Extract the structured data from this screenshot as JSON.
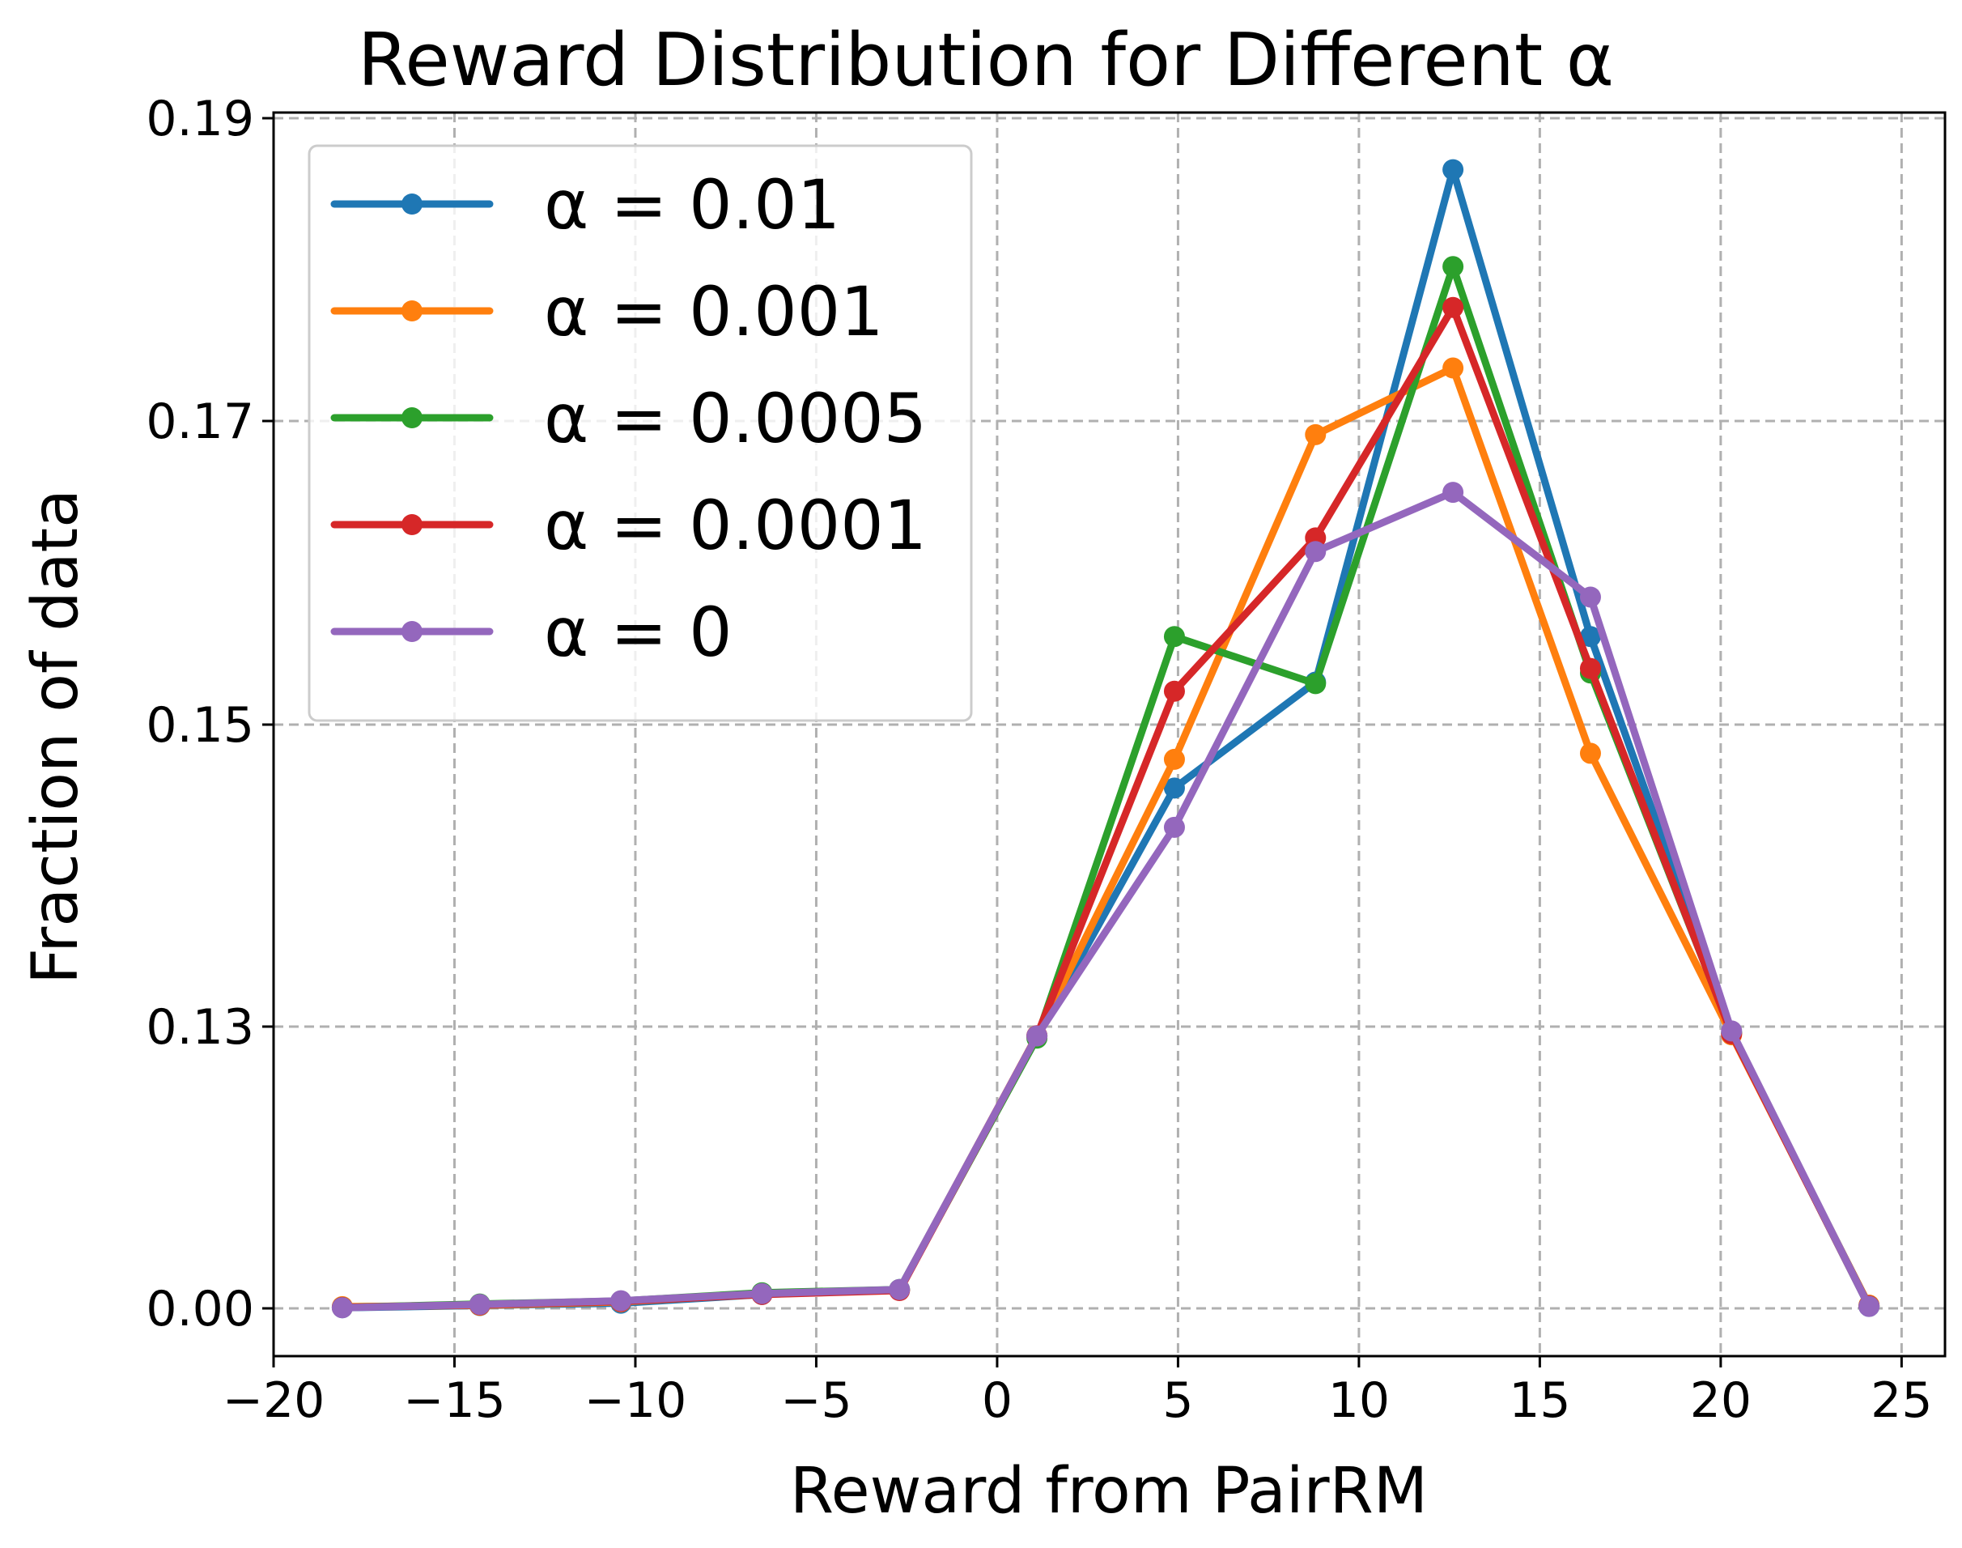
{
  "chart_data": {
    "type": "line",
    "title": "Reward Distribution for Different α",
    "xlabel": "Reward from PairRM",
    "ylabel": "Fraction of data",
    "xlim": [
      -20,
      26.2
    ],
    "ylim": [
      -0.0035,
      0.19
    ],
    "x_ticks": [
      -20,
      -15,
      -10,
      -5,
      0,
      5,
      10,
      15,
      20,
      25
    ],
    "x_tick_labels": [
      "−20",
      "−15",
      "−10",
      "−5",
      "0",
      "5",
      "10",
      "15",
      "20",
      "25"
    ],
    "y_ticks": [
      0.0,
      0.13,
      0.15,
      0.17,
      0.19
    ],
    "y_tick_labels": [
      "0.00",
      "0.13",
      "0.15",
      "0.17",
      "0.19"
    ],
    "y_scale_note": "broken axis: 0.00 then 0.13–0.19",
    "grid": true,
    "legend_position": "upper-left",
    "x": [
      -18.1,
      -14.3,
      -10.4,
      -6.5,
      -2.7,
      1.1,
      4.9,
      8.8,
      12.6,
      16.4,
      20.3,
      24.1
    ],
    "series": [
      {
        "name": "α = 0.01",
        "color": "#1f77b4",
        "values": [
          0.0003,
          0.0013,
          0.0024,
          0.0064,
          0.0087,
          0.1255,
          0.1458,
          0.1528,
          0.1866,
          0.1558,
          0.127,
          0.0009
        ]
      },
      {
        "name": "α = 0.001",
        "color": "#ff7f0e",
        "values": [
          0.0008,
          0.0014,
          0.003,
          0.0066,
          0.0086,
          0.1258,
          0.1477,
          0.1691,
          0.1735,
          0.1481,
          0.1262,
          0.0015
        ]
      },
      {
        "name": "α = 0.0005",
        "color": "#2ca02c",
        "values": [
          0.0004,
          0.002,
          0.0034,
          0.0072,
          0.0087,
          0.1247,
          0.1558,
          0.1527,
          0.1802,
          0.1534,
          0.1272,
          0.0011
        ]
      },
      {
        "name": "α = 0.0001",
        "color": "#d62728",
        "values": [
          0.0004,
          0.0016,
          0.0032,
          0.0064,
          0.0082,
          0.1258,
          0.1522,
          0.1623,
          0.1775,
          0.1537,
          0.1267,
          0.0011
        ]
      },
      {
        "name": "α = 0",
        "color": "#9467bd",
        "values": [
          0.0003,
          0.0018,
          0.0035,
          0.0068,
          0.0087,
          0.1257,
          0.1432,
          0.1614,
          0.1653,
          0.1584,
          0.128,
          0.0009
        ]
      }
    ]
  }
}
